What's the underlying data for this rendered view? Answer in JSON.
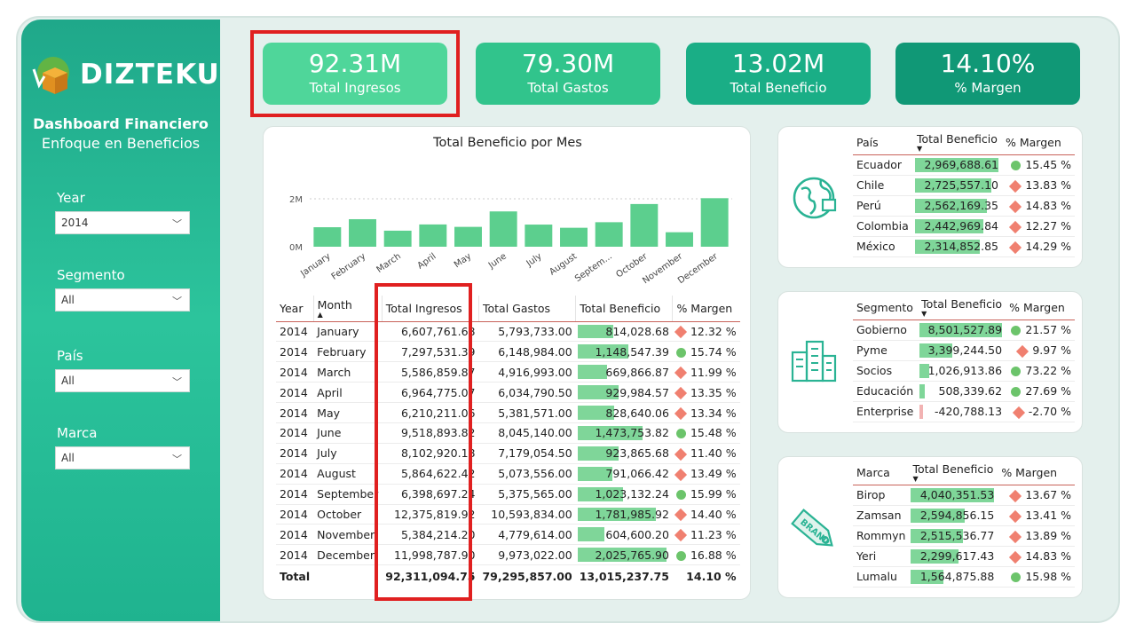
{
  "brand": {
    "name": "DIZTEKU",
    "title": "Dashboard Financiero",
    "subtitle": "Enfoque en Beneficios"
  },
  "filters": [
    {
      "label": "Year",
      "value": "2014"
    },
    {
      "label": "Segmento",
      "value": "All"
    },
    {
      "label": "País",
      "value": "All"
    },
    {
      "label": "Marca",
      "value": "All"
    }
  ],
  "kpis": [
    {
      "value": "92.31M",
      "label": "Total Ingresos",
      "color": "#4fd69a"
    },
    {
      "value": "79.30M",
      "label": "Total Gastos",
      "color": "#31c48c"
    },
    {
      "value": "13.02M",
      "label": "Total Beneficio",
      "color": "#1aae86"
    },
    {
      "value": "14.10%",
      "label": "% Margen",
      "color": "#109876"
    }
  ],
  "chart_data": {
    "type": "bar",
    "title": "Total Beneficio por Mes",
    "categories": [
      "January",
      "February",
      "March",
      "April",
      "May",
      "June",
      "July",
      "August",
      "Septem...",
      "October",
      "November",
      "December"
    ],
    "values": [
      814028.68,
      1148547.39,
      669866.87,
      929984.57,
      828640.06,
      1473753.82,
      923865.68,
      791066.42,
      1023132.24,
      1781985.92,
      604600.2,
      2025765.9
    ],
    "yticks": [
      "2M",
      "0M"
    ],
    "ylim": [
      0,
      2200000
    ],
    "bar_color": "#5ccf8e"
  },
  "main_table": {
    "headers": [
      "Year",
      "Month",
      "Total Ingresos",
      "Total Gastos",
      "Total Beneficio",
      "% Margen"
    ],
    "rows": [
      [
        "2014",
        "January",
        "6,607,761.68",
        "5,793,733.00",
        "814,028.68",
        "12.32 %"
      ],
      [
        "2014",
        "February",
        "7,297,531.39",
        "6,148,984.00",
        "1,148,547.39",
        "15.74 %"
      ],
      [
        "2014",
        "March",
        "5,586,859.87",
        "4,916,993.00",
        "669,866.87",
        "11.99 %"
      ],
      [
        "2014",
        "April",
        "6,964,775.07",
        "6,034,790.50",
        "929,984.57",
        "13.35 %"
      ],
      [
        "2014",
        "May",
        "6,210,211.06",
        "5,381,571.00",
        "828,640.06",
        "13.34 %"
      ],
      [
        "2014",
        "June",
        "9,518,893.82",
        "8,045,140.00",
        "1,473,753.82",
        "15.48 %"
      ],
      [
        "2014",
        "July",
        "8,102,920.18",
        "7,179,054.50",
        "923,865.68",
        "11.40 %"
      ],
      [
        "2014",
        "August",
        "5,864,622.42",
        "5,073,556.00",
        "791,066.42",
        "13.49 %"
      ],
      [
        "2014",
        "September",
        "6,398,697.24",
        "5,375,565.00",
        "1,023,132.24",
        "15.99 %"
      ],
      [
        "2014",
        "October",
        "12,375,819.92",
        "10,593,834.00",
        "1,781,985.92",
        "14.40 %"
      ],
      [
        "2014",
        "November",
        "5,384,214.20",
        "4,779,614.00",
        "604,600.20",
        "11.23 %"
      ],
      [
        "2014",
        "December",
        "11,998,787.90",
        "9,973,022.00",
        "2,025,765.90",
        "16.88 %"
      ]
    ],
    "bar_fracs": [
      0.4,
      0.57,
      0.33,
      0.46,
      0.41,
      0.73,
      0.46,
      0.39,
      0.51,
      0.88,
      0.3,
      1.0
    ],
    "markers": [
      "d",
      "c",
      "d",
      "d",
      "d",
      "c",
      "d",
      "d",
      "c",
      "d",
      "d",
      "c"
    ],
    "total": [
      "Total",
      "",
      "92,311,094.75",
      "79,295,857.00",
      "13,015,237.75",
      "14.10 %"
    ]
  },
  "pais_table": {
    "headers": [
      "País",
      "Total Beneficio",
      "% Margen"
    ],
    "rows": [
      [
        "Ecuador",
        "2,969,688.61",
        "15.45 %"
      ],
      [
        "Chile",
        "2,725,557.10",
        "13.83 %"
      ],
      [
        "Perú",
        "2,562,169.35",
        "14.83 %"
      ],
      [
        "Colombia",
        "2,442,969.84",
        "12.27 %"
      ],
      [
        "México",
        "2,314,852.85",
        "14.29 %"
      ]
    ],
    "bar_fracs": [
      1.0,
      0.92,
      0.86,
      0.82,
      0.78
    ],
    "markers": [
      "c",
      "d",
      "d",
      "d",
      "d"
    ]
  },
  "segmento_table": {
    "headers": [
      "Segmento",
      "Total Beneficio",
      "% Margen"
    ],
    "rows": [
      [
        "Gobierno",
        "8,501,527.89",
        "21.57 %"
      ],
      [
        "Pyme",
        "3,399,244.50",
        "9.97 %"
      ],
      [
        "Socios",
        "1,026,913.86",
        "73.22 %"
      ],
      [
        "Educación",
        "508,339.62",
        "27.69 %"
      ],
      [
        "Enterprise",
        "-420,788.13",
        "-2.70 %"
      ]
    ],
    "bar_fracs": [
      1.0,
      0.4,
      0.12,
      0.06,
      -0.05
    ],
    "markers": [
      "c",
      "d",
      "c",
      "c",
      "d"
    ]
  },
  "marca_table": {
    "headers": [
      "Marca",
      "Total Beneficio",
      "% Margen"
    ],
    "rows": [
      [
        "Birop",
        "4,040,351.53",
        "13.67 %"
      ],
      [
        "Zamsan",
        "2,594,856.15",
        "13.41 %"
      ],
      [
        "Rommyn",
        "2,515,536.77",
        "13.89 %"
      ],
      [
        "Yeri",
        "2,299,617.43",
        "14.83 %"
      ],
      [
        "Lumalu",
        "1,564,875.88",
        "15.98 %"
      ]
    ],
    "bar_fracs": [
      1.0,
      0.64,
      0.62,
      0.57,
      0.39
    ],
    "markers": [
      "d",
      "d",
      "d",
      "d",
      "c"
    ]
  }
}
